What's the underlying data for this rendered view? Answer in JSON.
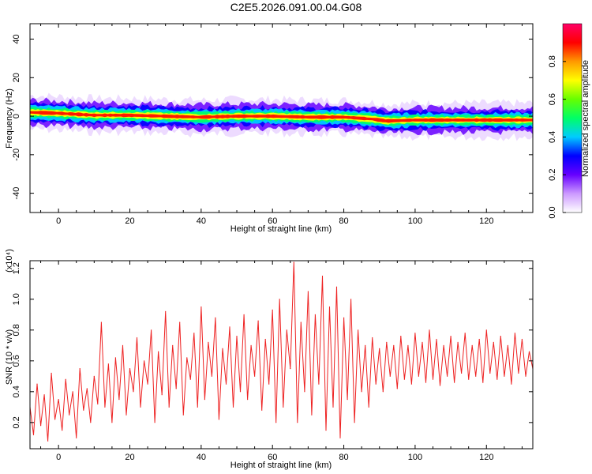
{
  "page_title": "C2E5.2026.091.00.04.G08",
  "chart_data": [
    {
      "type": "heatmap",
      "title": "C2E5.2026.091.00.04.G08",
      "xlabel": "Height of straight line (km)",
      "ylabel": "Frequency (Hz)",
      "xlim": [
        -8,
        133
      ],
      "ylim": [
        -50,
        48
      ],
      "xticks": [
        0,
        20,
        40,
        60,
        80,
        100,
        120
      ],
      "yticks": [
        -40,
        -20,
        0,
        20,
        40
      ],
      "xtick_labels": [
        "0",
        "20",
        "40",
        "60",
        "80",
        "100",
        "120"
      ],
      "ytick_labels": [
        "-40",
        "-20",
        "0",
        "20",
        "40"
      ],
      "colorbar": {
        "label": "Normalized spectral amplitude",
        "range": [
          0,
          1
        ],
        "ticks": [
          0.0,
          0.2,
          0.4,
          0.6,
          0.8
        ],
        "tick_labels": [
          "0.0",
          "0.2",
          "0.4",
          "0.6",
          "0.8"
        ],
        "colors": [
          "#ffffff",
          "#cc99ff",
          "#6600ff",
          "#0000ff",
          "#00ccff",
          "#00ff66",
          "#66ff00",
          "#ffff00",
          "#ff9900",
          "#ff0000",
          "#ff0066"
        ]
      },
      "band_center": [
        [
          -8,
          2
        ],
        [
          0,
          1.5
        ],
        [
          10,
          0.5
        ],
        [
          20,
          0.5
        ],
        [
          30,
          0
        ],
        [
          40,
          -0.5
        ],
        [
          50,
          0
        ],
        [
          60,
          0
        ],
        [
          70,
          -0.5
        ],
        [
          80,
          -0.5
        ],
        [
          88,
          -1.5
        ],
        [
          92,
          -2.5
        ],
        [
          100,
          -2
        ],
        [
          110,
          -2
        ],
        [
          120,
          -2
        ],
        [
          133,
          -2
        ]
      ],
      "band_halfwidth_hz": 4,
      "grid": false
    },
    {
      "type": "line",
      "xlabel": "Height of straight line (km)",
      "ylabel": "SNR (10 * v/v)",
      "y_multiplier_label": "(x10⁴)",
      "xlim": [
        -8,
        133
      ],
      "ylim": [
        0.03,
        1.25
      ],
      "xticks": [
        0,
        20,
        40,
        60,
        80,
        100,
        120
      ],
      "yticks": [
        0.2,
        0.4,
        0.6,
        0.8,
        1.0,
        1.2
      ],
      "xtick_labels": [
        "0",
        "20",
        "40",
        "60",
        "80",
        "100",
        "120"
      ],
      "ytick_labels": [
        "0.2",
        "0.4",
        "0.6",
        "0.8",
        "1.0",
        "1.2"
      ],
      "series": [
        {
          "color": "#ee2222",
          "x": [
            -8,
            -7,
            -6,
            -5,
            -4,
            -3,
            -2,
            -1,
            0,
            1,
            2,
            3,
            4,
            5,
            6,
            7,
            8,
            9,
            10,
            11,
            12,
            13,
            14,
            15,
            16,
            17,
            18,
            19,
            20,
            21,
            22,
            23,
            24,
            25,
            26,
            27,
            28,
            29,
            30,
            31,
            32,
            33,
            34,
            35,
            36,
            37,
            38,
            39,
            40,
            41,
            42,
            43,
            44,
            45,
            46,
            47,
            48,
            49,
            50,
            51,
            52,
            53,
            54,
            55,
            56,
            57,
            58,
            59,
            60,
            61,
            62,
            63,
            64,
            65,
            66,
            67,
            68,
            69,
            70,
            71,
            72,
            73,
            74,
            75,
            76,
            77,
            78,
            79,
            80,
            81,
            82,
            83,
            84,
            85,
            86,
            87,
            88,
            89,
            90,
            91,
            92,
            93,
            94,
            95,
            96,
            97,
            98,
            99,
            100,
            101,
            102,
            103,
            104,
            105,
            106,
            107,
            108,
            109,
            110,
            111,
            112,
            113,
            114,
            115,
            116,
            117,
            118,
            119,
            120,
            121,
            122,
            123,
            124,
            125,
            126,
            127,
            128,
            129,
            130,
            131,
            132,
            133
          ],
          "y": [
            0.3,
            0.12,
            0.45,
            0.18,
            0.38,
            0.08,
            0.52,
            0.22,
            0.35,
            0.15,
            0.48,
            0.25,
            0.4,
            0.1,
            0.55,
            0.28,
            0.42,
            0.2,
            0.5,
            0.32,
            0.85,
            0.3,
            0.58,
            0.2,
            0.62,
            0.35,
            0.7,
            0.25,
            0.55,
            0.4,
            0.75,
            0.3,
            0.6,
            0.45,
            0.8,
            0.2,
            0.66,
            0.38,
            0.92,
            0.3,
            0.7,
            0.42,
            0.85,
            0.25,
            0.62,
            0.48,
            0.78,
            0.3,
            0.95,
            0.35,
            0.72,
            0.5,
            0.88,
            0.22,
            0.68,
            0.45,
            0.82,
            0.3,
            0.76,
            0.4,
            0.9,
            0.35,
            0.7,
            0.5,
            0.86,
            0.28,
            0.74,
            0.45,
            0.93,
            0.2,
            1.0,
            0.3,
            0.8,
            0.55,
            1.24,
            0.2,
            0.85,
            0.4,
            1.05,
            0.25,
            0.9,
            0.45,
            1.15,
            0.15,
            0.95,
            0.3,
            1.08,
            0.1,
            0.88,
            0.35,
            1.0,
            0.2,
            0.8,
            0.4,
            0.7,
            0.3,
            0.75,
            0.45,
            0.68,
            0.4,
            0.72,
            0.5,
            0.7,
            0.42,
            0.76,
            0.48,
            0.7,
            0.45,
            0.78,
            0.5,
            0.72,
            0.46,
            0.8,
            0.48,
            0.74,
            0.44,
            0.7,
            0.5,
            0.76,
            0.46,
            0.72,
            0.52,
            0.78,
            0.48,
            0.7,
            0.5,
            0.74,
            0.46,
            0.8,
            0.52,
            0.72,
            0.48,
            0.76,
            0.5,
            0.7,
            0.45,
            0.78,
            0.52,
            0.74,
            0.5,
            0.66,
            0.55
          ]
        }
      ],
      "grid": false
    }
  ]
}
